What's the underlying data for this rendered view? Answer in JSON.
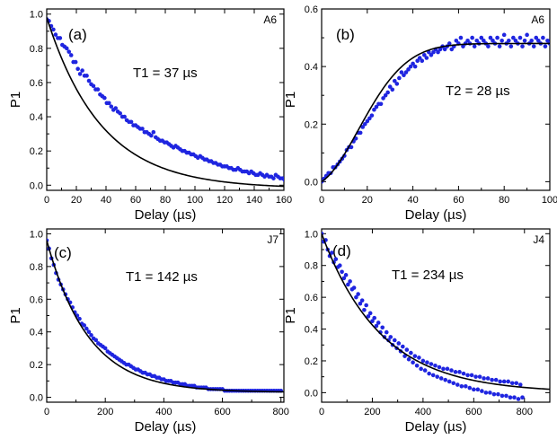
{
  "chart_data": [
    {
      "type": "scatter",
      "panel": "(a)",
      "sample": "A6",
      "annotation": "T1 = 37 µs",
      "xlabel": "Delay (µs)",
      "ylabel": "P1",
      "xlim": [
        0,
        160
      ],
      "ylim": [
        -0.03,
        1.03
      ],
      "xticks": [
        0,
        20,
        40,
        60,
        80,
        100,
        120,
        140,
        160
      ],
      "yticks": [
        0.0,
        0.2,
        0.4,
        0.6,
        0.8,
        1.0
      ],
      "ytick_decimals": 1,
      "grid": false,
      "fit": {
        "form": "exp_decay",
        "A": 1.0,
        "tau": 37,
        "C": -0.02
      },
      "points": {
        "x_start": 0,
        "x_step": 1.5,
        "y": [
          0.97,
          0.96,
          0.93,
          0.91,
          0.88,
          0.86,
          0.86,
          0.82,
          0.81,
          0.8,
          0.78,
          0.76,
          0.72,
          0.72,
          0.68,
          0.65,
          0.67,
          0.64,
          0.64,
          0.61,
          0.59,
          0.58,
          0.56,
          0.56,
          0.53,
          0.52,
          0.51,
          0.48,
          0.48,
          0.46,
          0.44,
          0.45,
          0.43,
          0.42,
          0.4,
          0.4,
          0.38,
          0.37,
          0.37,
          0.35,
          0.35,
          0.34,
          0.33,
          0.33,
          0.31,
          0.31,
          0.3,
          0.29,
          0.31,
          0.28,
          0.27,
          0.26,
          0.26,
          0.25,
          0.25,
          0.24,
          0.23,
          0.22,
          0.23,
          0.22,
          0.21,
          0.2,
          0.2,
          0.19,
          0.19,
          0.18,
          0.18,
          0.17,
          0.16,
          0.17,
          0.16,
          0.15,
          0.15,
          0.14,
          0.14,
          0.13,
          0.13,
          0.12,
          0.12,
          0.11,
          0.11,
          0.11,
          0.1,
          0.1,
          0.09,
          0.09,
          0.1,
          0.09,
          0.08,
          0.08,
          0.08,
          0.07,
          0.08,
          0.07,
          0.06,
          0.06,
          0.07,
          0.06,
          0.05,
          0.06,
          0.05,
          0.05,
          0.04,
          0.06,
          0.05,
          0.04,
          0.04,
          0.03,
          0.04,
          0.03,
          0.03,
          0.04,
          0.03,
          0.02,
          0.03,
          0.02,
          0.03,
          0.02,
          0.02,
          0.01,
          0.02,
          0.01,
          0.02,
          0.01,
          0.01,
          0.02,
          0.0,
          0.01,
          0.01,
          0.0,
          0.01,
          0.0,
          0.01,
          0.0,
          -0.01,
          0.0,
          0.0,
          0.01,
          -0.01,
          0.0,
          0.0,
          0.01,
          0.0,
          -0.01,
          0.0,
          0.01,
          0.0,
          0.0,
          0.0,
          0.0,
          0.01
        ]
      }
    },
    {
      "type": "scatter",
      "panel": "(b)",
      "sample": "A6",
      "annotation": "T2 = 28 µs",
      "xlabel": "Delay (µs)",
      "ylabel": "P1",
      "xlim": [
        0,
        100
      ],
      "ylim": [
        -0.03,
        0.6
      ],
      "xticks": [
        0,
        20,
        40,
        60,
        80,
        100
      ],
      "yticks": [
        0.0,
        0.2,
        0.4,
        0.6
      ],
      "ytick_decimals": 1,
      "grid": false,
      "fit": {
        "form": "gauss_rise",
        "A": 0.48,
        "tau": 28
      },
      "points": {
        "x_start": 0,
        "x_step": 1.0,
        "y": [
          0.0,
          0.01,
          0.02,
          0.03,
          0.03,
          0.05,
          0.05,
          0.06,
          0.07,
          0.08,
          0.09,
          0.11,
          0.12,
          0.12,
          0.14,
          0.15,
          0.17,
          0.17,
          0.19,
          0.2,
          0.21,
          0.22,
          0.23,
          0.25,
          0.26,
          0.27,
          0.27,
          0.29,
          0.3,
          0.31,
          0.33,
          0.32,
          0.35,
          0.34,
          0.36,
          0.38,
          0.37,
          0.38,
          0.39,
          0.4,
          0.41,
          0.4,
          0.42,
          0.43,
          0.42,
          0.44,
          0.43,
          0.45,
          0.44,
          0.45,
          0.46,
          0.45,
          0.46,
          0.47,
          0.46,
          0.47,
          0.48,
          0.46,
          0.47,
          0.49,
          0.48,
          0.5,
          0.47,
          0.48,
          0.49,
          0.48,
          0.5,
          0.47,
          0.49,
          0.48,
          0.5,
          0.49,
          0.48,
          0.47,
          0.5,
          0.49,
          0.48,
          0.5,
          0.47,
          0.49,
          0.51,
          0.48,
          0.49,
          0.47,
          0.5,
          0.49,
          0.48,
          0.5,
          0.47,
          0.49,
          0.51,
          0.48,
          0.49,
          0.47,
          0.5,
          0.49,
          0.48,
          0.5,
          0.47,
          0.49,
          0.48
        ]
      }
    },
    {
      "type": "scatter",
      "panel": "(c)",
      "sample": "J7",
      "annotation": "T1 = 142 µs",
      "xlabel": "Delay (µs)",
      "ylabel": "P1",
      "xlim": [
        0,
        810
      ],
      "ylim": [
        -0.03,
        1.03
      ],
      "xticks": [
        0,
        200,
        400,
        600,
        800
      ],
      "yticks": [
        0.0,
        0.2,
        0.4,
        0.6,
        0.8,
        1.0
      ],
      "ytick_decimals": 1,
      "grid": false,
      "fit": {
        "form": "exp_decay",
        "A": 0.93,
        "tau": 142,
        "C": 0.03
      },
      "points": {
        "x_start": 0,
        "x_step": 8,
        "y": [
          0.96,
          0.91,
          0.85,
          0.81,
          0.76,
          0.72,
          0.69,
          0.66,
          0.63,
          0.6,
          0.58,
          0.55,
          0.52,
          0.5,
          0.48,
          0.45,
          0.44,
          0.42,
          0.4,
          0.38,
          0.36,
          0.35,
          0.33,
          0.32,
          0.31,
          0.3,
          0.28,
          0.27,
          0.26,
          0.25,
          0.24,
          0.23,
          0.22,
          0.21,
          0.2,
          0.2,
          0.19,
          0.18,
          0.17,
          0.17,
          0.16,
          0.15,
          0.15,
          0.14,
          0.14,
          0.13,
          0.13,
          0.12,
          0.12,
          0.11,
          0.11,
          0.1,
          0.1,
          0.1,
          0.09,
          0.09,
          0.09,
          0.08,
          0.08,
          0.08,
          0.07,
          0.07,
          0.07,
          0.07,
          0.06,
          0.06,
          0.06,
          0.06,
          0.06,
          0.05,
          0.05,
          0.05,
          0.05,
          0.05,
          0.05,
          0.05,
          0.04,
          0.04,
          0.04,
          0.04,
          0.04,
          0.04,
          0.04,
          0.04,
          0.04,
          0.04,
          0.04,
          0.04,
          0.04,
          0.04,
          0.04,
          0.04,
          0.04,
          0.04,
          0.04,
          0.04,
          0.04,
          0.04,
          0.04,
          0.04,
          0.04
        ]
      }
    },
    {
      "type": "scatter",
      "panel": "(d)",
      "sample": "J4",
      "annotation": "T1 = 234 µs",
      "xlabel": "Delay (µs)",
      "ylabel": "P1",
      "xlim": [
        0,
        900
      ],
      "ylim": [
        -0.06,
        1.03
      ],
      "xticks": [
        0,
        200,
        400,
        600,
        800
      ],
      "yticks": [
        0.0,
        0.2,
        0.4,
        0.6,
        0.8,
        1.0
      ],
      "ytick_decimals": 1,
      "grid": false,
      "fit": {
        "form": "exp_decay",
        "A": 1.0,
        "tau": 234,
        "C": 0.0
      },
      "points": {
        "x_start": 0,
        "x_step": 8,
        "y": [
          1.0,
          0.95,
          0.96,
          0.9,
          0.86,
          0.88,
          0.82,
          0.84,
          0.79,
          0.8,
          0.76,
          0.72,
          0.74,
          0.68,
          0.7,
          0.65,
          0.66,
          0.6,
          0.62,
          0.56,
          0.58,
          0.52,
          0.55,
          0.48,
          0.5,
          0.45,
          0.47,
          0.42,
          0.44,
          0.38,
          0.41,
          0.35,
          0.38,
          0.33,
          0.35,
          0.3,
          0.33,
          0.28,
          0.31,
          0.26,
          0.29,
          0.23,
          0.27,
          0.21,
          0.25,
          0.19,
          0.23,
          0.17,
          0.22,
          0.15,
          0.2,
          0.14,
          0.19,
          0.12,
          0.18,
          0.11,
          0.17,
          0.1,
          0.16,
          0.09,
          0.15,
          0.08,
          0.15,
          0.07,
          0.14,
          0.06,
          0.13,
          0.05,
          0.13,
          0.04,
          0.12,
          0.04,
          0.11,
          0.03,
          0.11,
          0.02,
          0.1,
          0.02,
          0.1,
          0.01,
          0.09,
          0.0,
          0.09,
          0.0,
          0.08,
          -0.01,
          0.08,
          -0.01,
          0.07,
          -0.02,
          0.07,
          -0.02,
          0.07,
          -0.03,
          0.06,
          -0.03,
          0.06,
          -0.04,
          0.05,
          -0.03
        ]
      }
    }
  ],
  "colors": {
    "points": "#1f25e0",
    "fit": "#000000",
    "axis": "#000000"
  }
}
